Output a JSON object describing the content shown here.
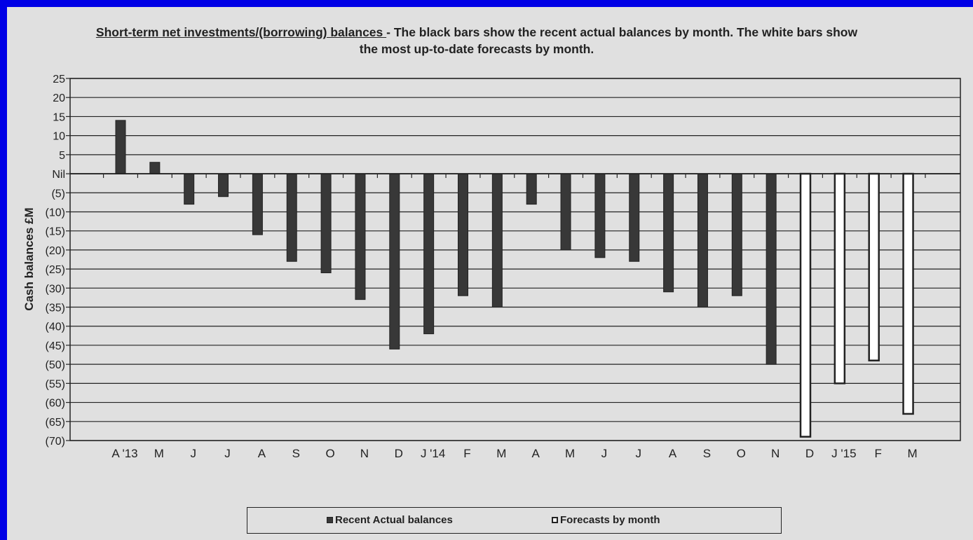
{
  "title": {
    "underlined": "Short-term net investments/(borrowing) balances ",
    "rest": "- The black bars show the recent actual balances by month. The white bars show the most up-to-date forecasts by month."
  },
  "legend": {
    "actual": "Recent Actual balances",
    "forecast": "Forecasts by month"
  },
  "colors": {
    "background": "#e0e0e0",
    "frame": "#0000e6",
    "actual_bar": "#383838",
    "forecast_bar": "#ffffff",
    "axis": "#222222"
  },
  "chart_data": {
    "type": "bar",
    "ylabel": "Cash balances £M",
    "ylim": [
      -70,
      25
    ],
    "yticks": [
      {
        "v": 25,
        "label": "25"
      },
      {
        "v": 20,
        "label": "20"
      },
      {
        "v": 15,
        "label": "15"
      },
      {
        "v": 10,
        "label": "10"
      },
      {
        "v": 5,
        "label": "5"
      },
      {
        "v": 0,
        "label": "Nil"
      },
      {
        "v": -5,
        "label": "(5)"
      },
      {
        "v": -10,
        "label": "(10)"
      },
      {
        "v": -15,
        "label": "(15)"
      },
      {
        "v": -20,
        "label": "(20)"
      },
      {
        "v": -25,
        "label": "(25)"
      },
      {
        "v": -30,
        "label": "(30)"
      },
      {
        "v": -35,
        "label": "(35)"
      },
      {
        "v": -40,
        "label": "(40)"
      },
      {
        "v": -45,
        "label": "(45)"
      },
      {
        "v": -50,
        "label": "(50)"
      },
      {
        "v": -55,
        "label": "(55)"
      },
      {
        "v": -60,
        "label": "(60)"
      },
      {
        "v": -65,
        "label": "(65)"
      },
      {
        "v": -70,
        "label": "(70)"
      }
    ],
    "categories": [
      "A '13",
      "M",
      "J",
      "J",
      "A",
      "S",
      "O",
      "N",
      "D",
      "J '14",
      "F",
      "M",
      "A",
      "M",
      "J",
      "J",
      "A",
      "S",
      "O",
      "N",
      "D",
      "J '15",
      "F",
      "M"
    ],
    "series": [
      {
        "name": "Recent Actual balances",
        "style": "actual",
        "values": [
          14,
          3,
          -8,
          -6,
          -16,
          -23,
          -26,
          -33,
          -46,
          -42,
          -32,
          -35,
          -8,
          -20,
          -22,
          -23,
          -31,
          -35,
          -32,
          -50,
          null,
          null,
          null,
          null
        ]
      },
      {
        "name": "Forecasts by month",
        "style": "forecast",
        "values": [
          null,
          null,
          null,
          null,
          null,
          null,
          null,
          null,
          null,
          null,
          null,
          null,
          null,
          null,
          null,
          null,
          null,
          null,
          null,
          null,
          -69,
          -55,
          -49,
          -63
        ]
      }
    ],
    "grid": true,
    "legend_position": "bottom"
  }
}
